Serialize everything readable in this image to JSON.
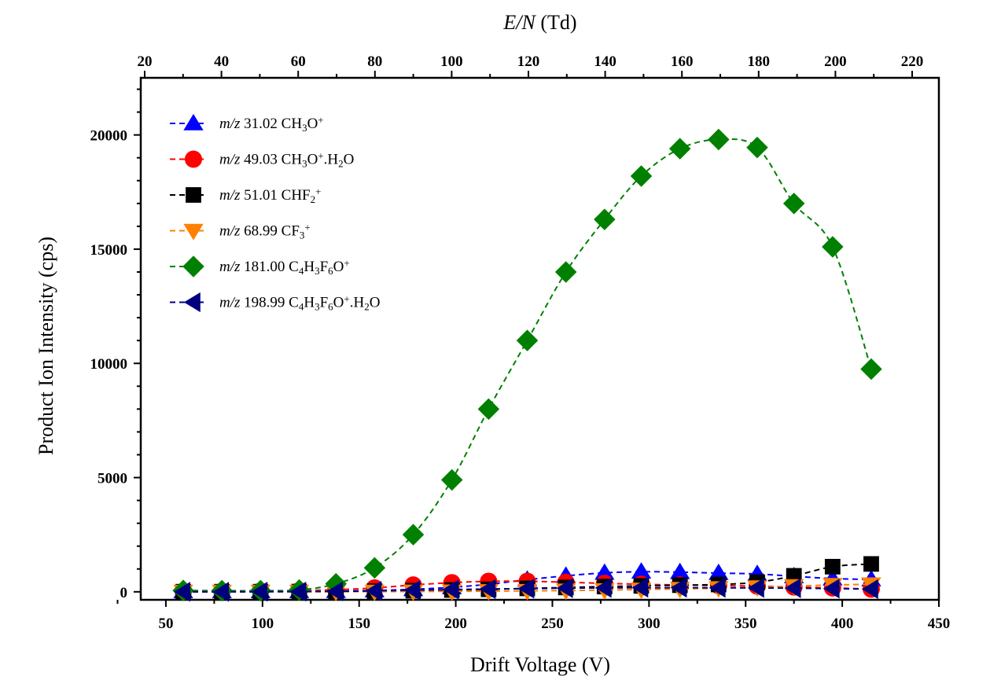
{
  "chart_data": {
    "type": "scatter",
    "xlabel": "Drift Voltage (V)",
    "ylabel": "Product Ion Intensity (cps)",
    "top_axis": {
      "label_italic": "E/N",
      "label_rest": " (Td)",
      "range": [
        20,
        220
      ],
      "ticks": [
        20,
        40,
        60,
        80,
        100,
        120,
        140,
        160,
        180,
        200,
        220
      ]
    },
    "xlim": [
      37,
      450
    ],
    "ylim": [
      -350,
      22500
    ],
    "xticks": [
      50,
      100,
      150,
      200,
      250,
      300,
      350,
      400,
      450
    ],
    "yticks": [
      0,
      5000,
      10000,
      15000,
      20000
    ],
    "legend_position": "top-left",
    "x": [
      59,
      79,
      99,
      119,
      138,
      158,
      178,
      198,
      217,
      237,
      257,
      277,
      296,
      316,
      336,
      356,
      375,
      395,
      415
    ],
    "series": [
      {
        "name": "m/z 31.02 CH3O+",
        "legend_parts": [
          [
            "i",
            "m/z"
          ],
          [
            "n",
            " 31.02 CH"
          ],
          [
            "sub",
            "3"
          ],
          [
            "n",
            "O"
          ],
          [
            "sup",
            "+"
          ]
        ],
        "marker": "triangle-up",
        "color": "#0000ff",
        "values": [
          20,
          20,
          20,
          25,
          30,
          60,
          110,
          200,
          330,
          530,
          700,
          830,
          880,
          860,
          820,
          780,
          680,
          580,
          540
        ]
      },
      {
        "name": "m/z 49.03 CH3O+.H2O",
        "legend_parts": [
          [
            "i",
            "m/z"
          ],
          [
            "n",
            " 49.03 CH"
          ],
          [
            "sub",
            "3"
          ],
          [
            "n",
            "O"
          ],
          [
            "sup",
            "+"
          ],
          [
            "n",
            ".H"
          ],
          [
            "sub",
            "2"
          ],
          [
            "n",
            "O"
          ]
        ],
        "marker": "circle",
        "color": "#ff0000",
        "values": [
          15,
          20,
          30,
          50,
          90,
          170,
          300,
          400,
          460,
          460,
          420,
          370,
          330,
          300,
          270,
          250,
          210,
          170,
          120
        ]
      },
      {
        "name": "m/z 51.01 CHF2+",
        "legend_parts": [
          [
            "i",
            "m/z"
          ],
          [
            "n",
            " 51.01 CHF"
          ],
          [
            "sub",
            "2"
          ],
          [
            "sup",
            "+"
          ]
        ],
        "marker": "square",
        "color": "#000000",
        "values": [
          5,
          5,
          5,
          10,
          15,
          30,
          50,
          80,
          110,
          150,
          190,
          230,
          260,
          290,
          320,
          420,
          700,
          1100,
          1220
        ]
      },
      {
        "name": "m/z 68.99 CF3+",
        "legend_parts": [
          [
            "i",
            "m/z"
          ],
          [
            "n",
            " 68.99 CF"
          ],
          [
            "sub",
            "3"
          ],
          [
            "sup",
            "+"
          ]
        ],
        "marker": "triangle-down",
        "color": "#ff8000",
        "values": [
          5,
          5,
          5,
          5,
          5,
          10,
          15,
          20,
          30,
          40,
          55,
          75,
          100,
          130,
          160,
          200,
          250,
          300,
          330
        ]
      },
      {
        "name": "m/z 181.00 C4H3F6O+",
        "legend_parts": [
          [
            "i",
            "m/z"
          ],
          [
            "n",
            " 181.00 C"
          ],
          [
            "sub",
            "4"
          ],
          [
            "n",
            "H"
          ],
          [
            "sub",
            "3"
          ],
          [
            "n",
            "F"
          ],
          [
            "sub",
            "6"
          ],
          [
            "n",
            "O"
          ],
          [
            "sup",
            "+"
          ]
        ],
        "marker": "diamond",
        "color": "#008000",
        "values": [
          60,
          50,
          50,
          80,
          350,
          1050,
          2500,
          4900,
          8000,
          11000,
          14000,
          16300,
          18200,
          19400,
          19800,
          19450,
          17000,
          15100,
          9750
        ]
      },
      {
        "name": "m/z 198.99 C4H3F6O+.H2O",
        "legend_parts": [
          [
            "i",
            "m/z"
          ],
          [
            "n",
            " 198.99 C"
          ],
          [
            "sub",
            "4"
          ],
          [
            "n",
            "H"
          ],
          [
            "sub",
            "3"
          ],
          [
            "n",
            "F"
          ],
          [
            "sub",
            "6"
          ],
          [
            "n",
            "O"
          ],
          [
            "sup",
            "+"
          ],
          [
            "n",
            ".H"
          ],
          [
            "sub",
            "2"
          ],
          [
            "n",
            "O"
          ]
        ],
        "marker": "triangle-left",
        "color": "#00007f",
        "values": [
          0,
          0,
          5,
          10,
          20,
          40,
          70,
          100,
          120,
          140,
          160,
          170,
          180,
          180,
          175,
          170,
          160,
          140,
          120
        ]
      }
    ]
  }
}
